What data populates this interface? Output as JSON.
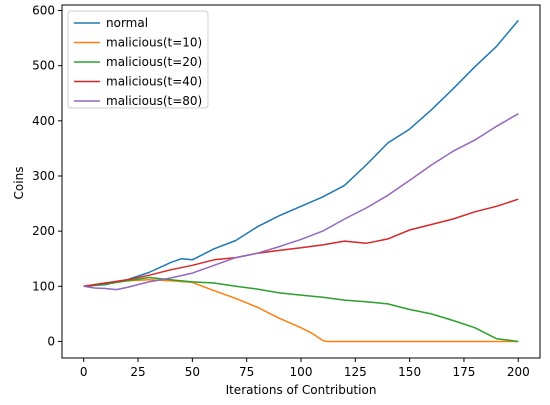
{
  "chart_data": {
    "type": "line",
    "title": "",
    "xlabel": "Iterations of Contribution",
    "ylabel": "Coins",
    "xlim": [
      -10,
      210
    ],
    "ylim": [
      -30,
      610
    ],
    "xticks": [
      0,
      25,
      50,
      75,
      100,
      125,
      150,
      175,
      200
    ],
    "yticks": [
      0,
      100,
      200,
      300,
      400,
      500,
      600
    ],
    "grid": false,
    "legend": "top-left",
    "series": [
      {
        "name": "normal",
        "color": "#1f77b4",
        "points": [
          [
            0,
            100
          ],
          [
            10,
            103
          ],
          [
            20,
            112
          ],
          [
            30,
            125
          ],
          [
            40,
            143
          ],
          [
            45,
            150
          ],
          [
            50,
            148
          ],
          [
            60,
            168
          ],
          [
            70,
            183
          ],
          [
            80,
            208
          ],
          [
            90,
            228
          ],
          [
            100,
            245
          ],
          [
            110,
            262
          ],
          [
            120,
            283
          ],
          [
            130,
            320
          ],
          [
            140,
            360
          ],
          [
            150,
            385
          ],
          [
            160,
            420
          ],
          [
            170,
            458
          ],
          [
            180,
            498
          ],
          [
            190,
            535
          ],
          [
            200,
            582
          ]
        ]
      },
      {
        "name": "malicious(t=10)",
        "color": "#ff7f0e",
        "points": [
          [
            0,
            100
          ],
          [
            10,
            106
          ],
          [
            20,
            110
          ],
          [
            30,
            112
          ],
          [
            40,
            110
          ],
          [
            50,
            107
          ],
          [
            60,
            92
          ],
          [
            70,
            78
          ],
          [
            80,
            62
          ],
          [
            90,
            42
          ],
          [
            100,
            25
          ],
          [
            105,
            15
          ],
          [
            110,
            2
          ],
          [
            112,
            0
          ],
          [
            200,
            0
          ]
        ]
      },
      {
        "name": "malicious(t=20)",
        "color": "#2ca02c",
        "points": [
          [
            0,
            100
          ],
          [
            10,
            104
          ],
          [
            20,
            110
          ],
          [
            30,
            116
          ],
          [
            40,
            112
          ],
          [
            50,
            108
          ],
          [
            60,
            106
          ],
          [
            70,
            100
          ],
          [
            80,
            95
          ],
          [
            90,
            88
          ],
          [
            100,
            84
          ],
          [
            110,
            80
          ],
          [
            120,
            75
          ],
          [
            130,
            72
          ],
          [
            140,
            68
          ],
          [
            150,
            58
          ],
          [
            160,
            50
          ],
          [
            170,
            38
          ],
          [
            180,
            25
          ],
          [
            190,
            5
          ],
          [
            200,
            0
          ]
        ]
      },
      {
        "name": "malicious(t=40)",
        "color": "#d62728",
        "points": [
          [
            0,
            100
          ],
          [
            10,
            106
          ],
          [
            20,
            112
          ],
          [
            30,
            120
          ],
          [
            40,
            130
          ],
          [
            50,
            138
          ],
          [
            60,
            148
          ],
          [
            70,
            152
          ],
          [
            80,
            160
          ],
          [
            90,
            165
          ],
          [
            100,
            170
          ],
          [
            110,
            175
          ],
          [
            120,
            182
          ],
          [
            130,
            178
          ],
          [
            140,
            186
          ],
          [
            150,
            202
          ],
          [
            160,
            212
          ],
          [
            170,
            222
          ],
          [
            180,
            235
          ],
          [
            190,
            245
          ],
          [
            200,
            258
          ]
        ]
      },
      {
        "name": "malicious(t=80)",
        "color": "#9467bd",
        "points": [
          [
            0,
            100
          ],
          [
            5,
            97
          ],
          [
            10,
            96
          ],
          [
            15,
            94
          ],
          [
            20,
            98
          ],
          [
            25,
            103
          ],
          [
            30,
            108
          ],
          [
            40,
            115
          ],
          [
            50,
            124
          ],
          [
            60,
            138
          ],
          [
            70,
            152
          ],
          [
            80,
            160
          ],
          [
            90,
            172
          ],
          [
            100,
            185
          ],
          [
            110,
            200
          ],
          [
            120,
            222
          ],
          [
            130,
            242
          ],
          [
            140,
            265
          ],
          [
            150,
            292
          ],
          [
            160,
            320
          ],
          [
            170,
            345
          ],
          [
            180,
            365
          ],
          [
            190,
            390
          ],
          [
            200,
            413
          ]
        ]
      }
    ]
  }
}
